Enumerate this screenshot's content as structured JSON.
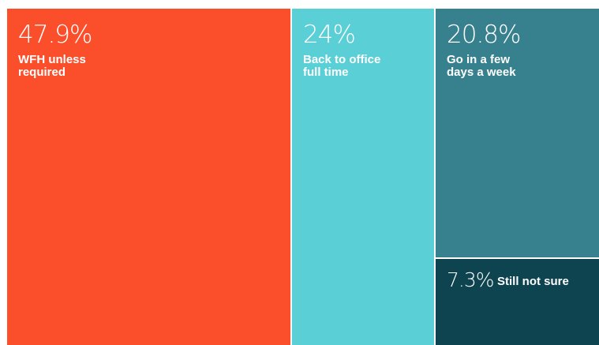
{
  "chart_data": {
    "type": "treemap",
    "items": [
      {
        "label": "WFH unless\nrequired",
        "value": 47.9,
        "display": "47.9%",
        "color": "#fb4f2c"
      },
      {
        "label": "Back to office\nfull time",
        "value": 24,
        "display": "24%",
        "color": "#5bcfd6"
      },
      {
        "label": "Go in a few\ndays a week",
        "value": 20.8,
        "display": "20.8%",
        "color": "#37818f"
      },
      {
        "label": "Still not sure",
        "value": 7.3,
        "display": "7.3%",
        "color": "#0d4450"
      }
    ]
  }
}
